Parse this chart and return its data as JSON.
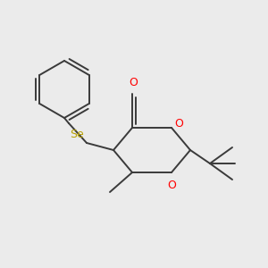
{
  "bg_color": "#ebebeb",
  "bond_color": "#3a3a3a",
  "o_color": "#ff0000",
  "se_color": "#b8a000",
  "label_Se": "Se",
  "label_O1": "O",
  "label_O3": "O",
  "label_carbonyl": "O",
  "figsize": [
    3.0,
    3.0
  ],
  "dpi": 100
}
